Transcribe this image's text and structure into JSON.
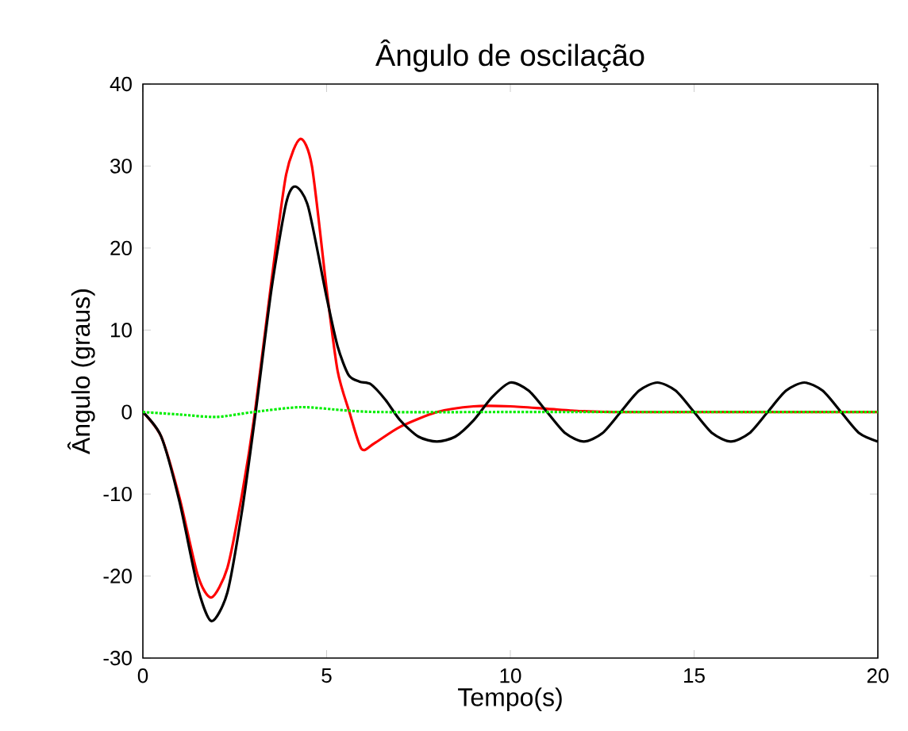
{
  "chart_data": {
    "type": "line",
    "title": "Ângulo de oscilação",
    "xlabel": "Tempo(s)",
    "ylabel": "Ângulo (graus)",
    "xlim": [
      0,
      20
    ],
    "ylim": [
      -30,
      40
    ],
    "xticks": [
      0,
      5,
      10,
      15,
      20
    ],
    "yticks": [
      -30,
      -20,
      -10,
      0,
      10,
      20,
      30,
      40
    ],
    "grid": false,
    "marker": "none",
    "series": [
      {
        "color": "#ff0000",
        "line_style": "solid",
        "x": [
          0,
          0.5,
          1,
          1.5,
          1.87,
          2.3,
          2.7,
          3.05,
          3.5,
          3.9,
          4.28,
          4.6,
          5,
          5.3,
          5.62,
          5.95,
          6.3,
          7,
          8,
          9,
          10,
          11,
          12,
          13,
          15,
          17,
          20
        ],
        "values": [
          0,
          -3,
          -10.5,
          -20,
          -22.6,
          -19,
          -10,
          0,
          16,
          29,
          33.3,
          30,
          15,
          5,
          0,
          -4.5,
          -3.8,
          -1.8,
          0,
          0.7,
          0.7,
          0.4,
          0.1,
          0,
          0,
          0,
          0
        ]
      },
      {
        "color": "#000000",
        "line_style": "solid",
        "x": [
          0,
          0.5,
          1,
          1.5,
          1.87,
          2.3,
          2.7,
          3.07,
          3.5,
          3.9,
          4.15,
          4.5,
          5,
          5.3,
          5.6,
          5.9,
          6.2,
          6.6,
          7,
          7.5,
          8,
          8.5,
          9,
          9.5,
          10,
          10.5,
          11,
          11.5,
          12,
          12.5,
          13,
          13.5,
          14,
          14.5,
          15,
          15.5,
          16,
          16.5,
          17,
          17.5,
          18,
          18.5,
          19,
          19.5,
          20
        ],
        "values": [
          0,
          -3,
          -11,
          -21.5,
          -25.5,
          -22,
          -12,
          0,
          15,
          25.5,
          27.5,
          25,
          14,
          8,
          4.5,
          3.7,
          3.4,
          1.5,
          -1,
          -3,
          -3.6,
          -3,
          -1,
          1.8,
          3.6,
          2.6,
          0,
          -2.6,
          -3.6,
          -2.6,
          0,
          2.6,
          3.6,
          2.6,
          0,
          -2.6,
          -3.6,
          -2.6,
          0,
          2.6,
          3.6,
          2.6,
          0,
          -2.6,
          -3.6
        ]
      },
      {
        "color": "#00ee00",
        "line_style": "dotted",
        "x": [
          0,
          1,
          2,
          3,
          4.3,
          5.5,
          6.5,
          10,
          15,
          20
        ],
        "values": [
          0,
          -0.3,
          -0.6,
          0,
          0.6,
          0.2,
          0,
          0,
          0,
          0
        ]
      }
    ]
  }
}
